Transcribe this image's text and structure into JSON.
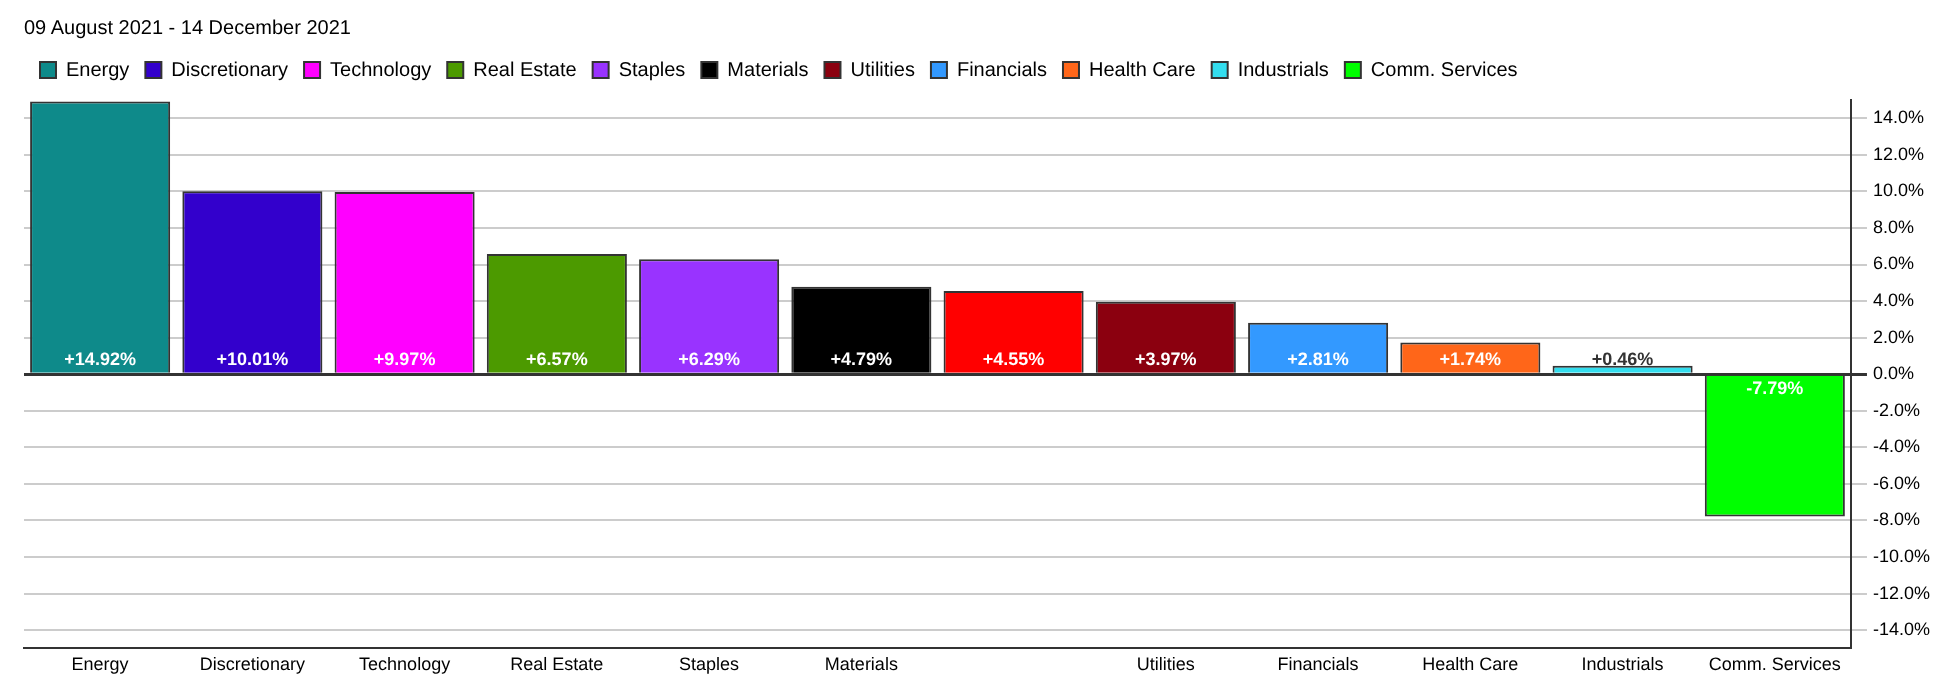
{
  "chart_data": {
    "type": "bar",
    "title": "09 August 2021 - 14 December 2021",
    "categories": [
      "Energy",
      "Discretionary",
      "Technology",
      "Real Estate",
      "Staples",
      "Materials",
      null,
      "Utilities",
      "Financials",
      "Health Care",
      "Industrials",
      "Comm. Services"
    ],
    "series": [
      {
        "name": "Energy",
        "color": "#0e8a8a",
        "values": [
          14.92,
          null,
          null,
          null,
          null,
          null,
          null,
          null,
          null,
          null,
          null,
          null
        ],
        "value_labels": [
          "+14.92%",
          null,
          null,
          null,
          null,
          null,
          null,
          null,
          null,
          null,
          null,
          null
        ]
      },
      {
        "name": "Discretionary",
        "color": "#3300cc",
        "values": [
          null,
          10.01,
          null,
          null,
          null,
          null,
          null,
          null,
          null,
          null,
          null,
          null
        ],
        "value_labels": [
          null,
          "+10.01%",
          null,
          null,
          null,
          null,
          null,
          null,
          null,
          null,
          null,
          null
        ]
      },
      {
        "name": "Technology",
        "color": "#ff00ff",
        "values": [
          null,
          null,
          9.97,
          null,
          null,
          null,
          null,
          null,
          null,
          null,
          null,
          null
        ],
        "value_labels": [
          null,
          null,
          "+9.97%",
          null,
          null,
          null,
          null,
          null,
          null,
          null,
          null,
          null
        ]
      },
      {
        "name": "Real Estate",
        "color": "#4c9a00",
        "values": [
          null,
          null,
          null,
          6.57,
          null,
          null,
          null,
          null,
          null,
          null,
          null,
          null
        ],
        "value_labels": [
          null,
          null,
          null,
          "+6.57%",
          null,
          null,
          null,
          null,
          null,
          null,
          null,
          null
        ]
      },
      {
        "name": "Staples",
        "color": "#9933ff",
        "values": [
          null,
          null,
          null,
          null,
          6.29,
          null,
          null,
          null,
          null,
          null,
          null,
          null
        ],
        "value_labels": [
          null,
          null,
          null,
          null,
          "+6.29%",
          null,
          null,
          null,
          null,
          null,
          null,
          null
        ]
      },
      {
        "name": "Materials",
        "color": "#000000",
        "values": [
          null,
          null,
          null,
          null,
          null,
          4.79,
          null,
          null,
          null,
          null,
          null,
          null
        ],
        "value_labels": [
          null,
          null,
          null,
          null,
          null,
          "+4.79%",
          null,
          null,
          null,
          null,
          null,
          null
        ]
      },
      {
        "color": "#ff0000",
        "values": [
          null,
          null,
          null,
          null,
          null,
          null,
          4.55,
          null,
          null,
          null,
          null,
          null
        ],
        "value_labels": [
          null,
          null,
          null,
          null,
          null,
          null,
          "+4.55%",
          null,
          null,
          null,
          null,
          null
        ]
      },
      {
        "name": "Utilities",
        "color": "#8b000f",
        "values": [
          null,
          null,
          null,
          null,
          null,
          null,
          null,
          3.97,
          null,
          null,
          null,
          null
        ],
        "value_labels": [
          null,
          null,
          null,
          null,
          null,
          null,
          null,
          "+3.97%",
          null,
          null,
          null,
          null
        ]
      },
      {
        "name": "Financials",
        "color": "#3399ff",
        "values": [
          null,
          null,
          null,
          null,
          null,
          null,
          null,
          null,
          2.81,
          null,
          null,
          null
        ],
        "value_labels": [
          null,
          null,
          null,
          null,
          null,
          null,
          null,
          null,
          "+2.81%",
          null,
          null,
          null
        ]
      },
      {
        "name": "Health Care",
        "color": "#ff6619",
        "values": [
          null,
          null,
          null,
          null,
          null,
          null,
          null,
          null,
          null,
          1.74,
          null,
          null
        ],
        "value_labels": [
          null,
          null,
          null,
          null,
          null,
          null,
          null,
          null,
          null,
          "+1.74%",
          null,
          null
        ]
      },
      {
        "name": "Industrials",
        "color": "#33ddee",
        "values": [
          null,
          null,
          null,
          null,
          null,
          null,
          null,
          null,
          null,
          null,
          0.46,
          null
        ],
        "value_labels": [
          null,
          null,
          null,
          null,
          null,
          null,
          null,
          null,
          null,
          null,
          "+0.46%",
          null
        ]
      },
      {
        "name": "Comm. Services",
        "color": "#00ff00",
        "values": [
          null,
          null,
          null,
          null,
          null,
          null,
          null,
          null,
          null,
          null,
          null,
          -7.79
        ],
        "value_labels": [
          null,
          null,
          null,
          null,
          null,
          null,
          null,
          null,
          null,
          null,
          null,
          "-7.79%"
        ]
      }
    ],
    "ylim": [
      -15,
      15
    ],
    "yticks": [
      {
        "value": -14,
        "label": "-14.0%"
      },
      {
        "value": -12,
        "label": "-12.0%"
      },
      {
        "value": -10,
        "label": "-10.0%"
      },
      {
        "value": -8,
        "label": "-8.0%"
      },
      {
        "value": -6,
        "label": "-6.0%"
      },
      {
        "value": -4,
        "label": "-4.0%"
      },
      {
        "value": -2,
        "label": "-2.0%"
      },
      {
        "value": 0,
        "label": "0.0%"
      },
      {
        "value": 2,
        "label": "2.0%"
      },
      {
        "value": 4,
        "label": "4.0%"
      },
      {
        "value": 6,
        "label": "6.0%"
      },
      {
        "value": 8,
        "label": "8.0%"
      },
      {
        "value": 10,
        "label": "10.0%"
      },
      {
        "value": 12,
        "label": "12.0%"
      },
      {
        "value": 14,
        "label": "14.0%"
      }
    ],
    "grid": "y",
    "legend": "top left"
  }
}
